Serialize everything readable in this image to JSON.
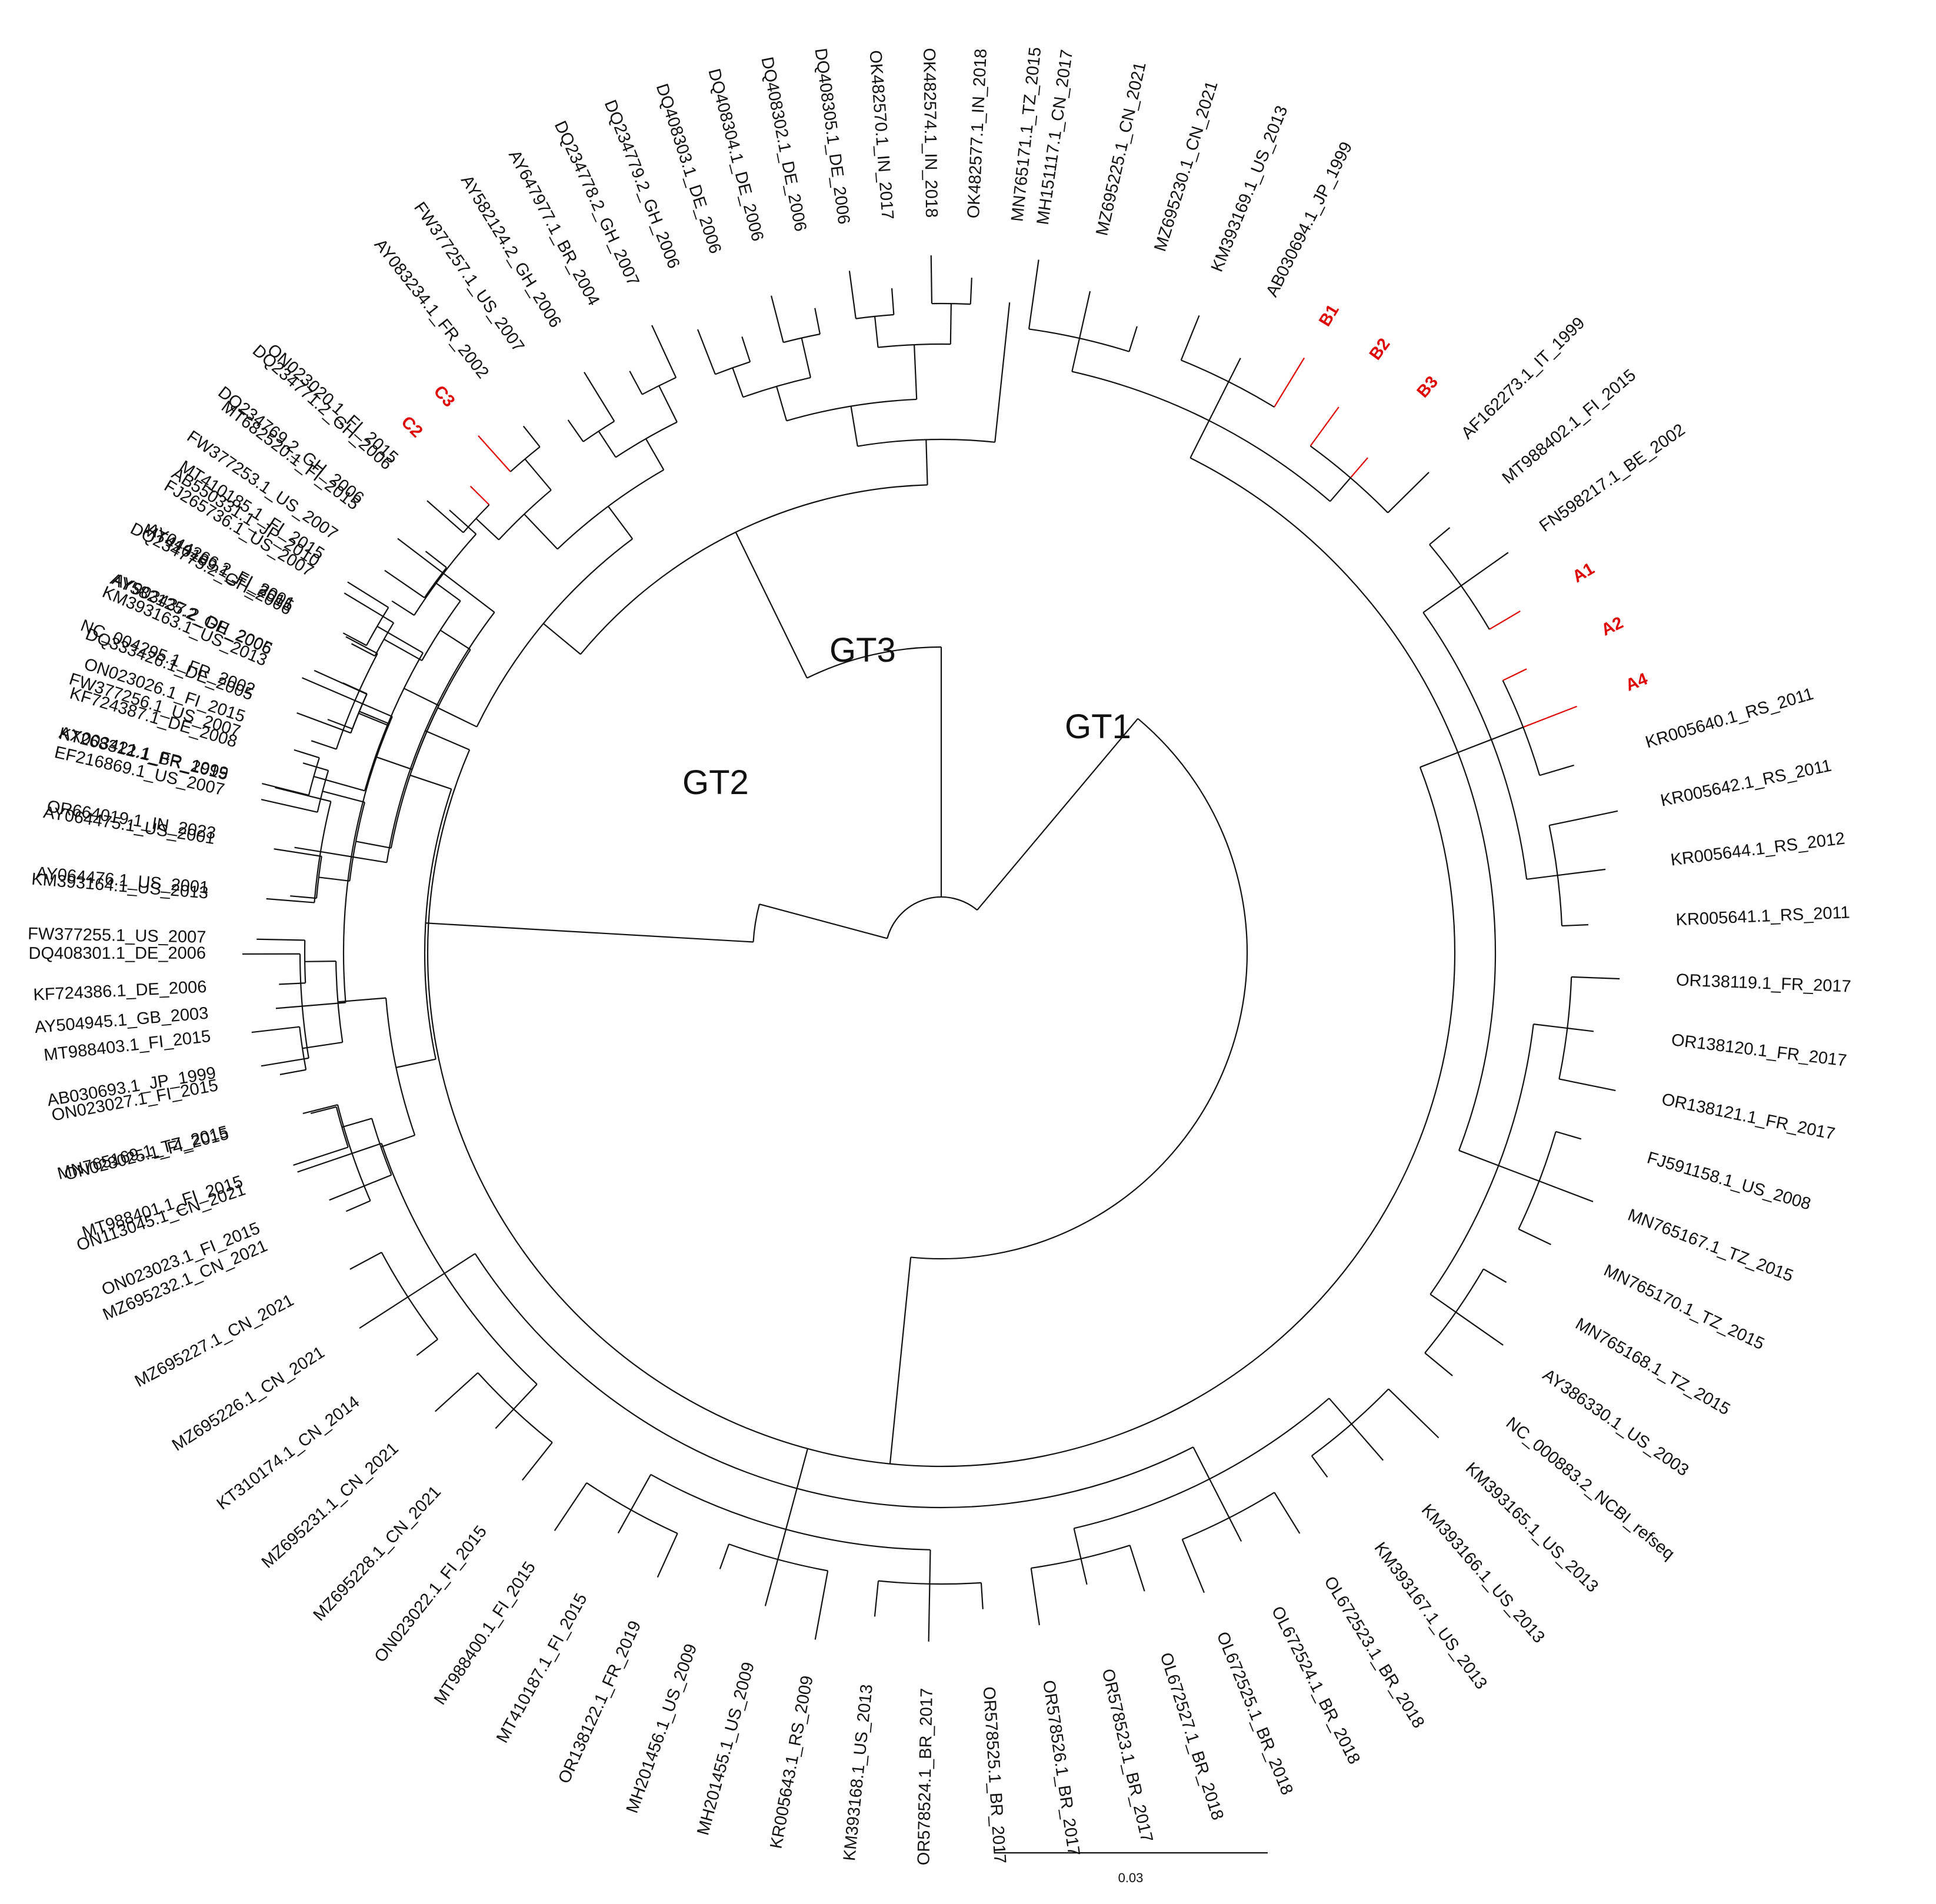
{
  "colors": {
    "branch": "#111111",
    "highlight": "#e00000",
    "background": "#ffffff"
  },
  "clades": [
    {
      "id": "GT1",
      "label": "GT1"
    },
    {
      "id": "GT2",
      "label": "GT2"
    },
    {
      "id": "GT3",
      "label": "GT3"
    }
  ],
  "scale_bar": {
    "value": 0.03,
    "label": "0.03"
  },
  "groups": [
    {
      "clade": "GT1",
      "leaves": [
        "MH151117.1_CN_2017",
        "MZ695225.1_CN_2021",
        "MZ695230.1_CN_2021",
        "KM393169.1_US_2013",
        "AB030694.1_JP_1999",
        "B1",
        "B2",
        "B3",
        "AF162273.1_IT_1999",
        "MT988402.1_FI_2015",
        "FN598217.1_BE_2002",
        "A1",
        "A2",
        "A4",
        "KR005640.1_RS_2011",
        "KR005642.1_RS_2011",
        "KR005644.1_RS_2012",
        "KR005641.1_RS_2011",
        "OR138119.1_FR_2017",
        "OR138120.1_FR_2017",
        "OR138121.1_FR_2017",
        "FJ591158.1_US_2008",
        "MN765167.1_TZ_2015",
        "MN765170.1_TZ_2015",
        "MN765168.1_TZ_2015",
        "AY386330.1_US_2003",
        "NC_000883.2_NCBI_refseq",
        "KM393165.1_US_2013",
        "KM393166.1_US_2013",
        "KM393167.1_US_2013",
        "OL672523.1_BR_2018",
        "OL672524.1_BR_2018",
        "OL672525.1_BR_2018",
        "OL672527.1_BR_2018",
        "OR578523.1_BR_2017",
        "OR578526.1_BR_2017",
        "OR578525.1_BR_2017",
        "OR578524.1_BR_2017",
        "KM393168.1_US_2013",
        "KR005643.1_RS_2009",
        "MH201455.1_US_2009",
        "MH201456.1_US_2009",
        "OR138122.1_FR_2019",
        "MT410187.1_FI_2015",
        "MT988400.1_FI_2015",
        "ON023022.1_FI_2015",
        "MZ695228.1_CN_2021",
        "MZ695231.1_CN_2021",
        "KT310174.1_CN_2014",
        "MZ695226.1_CN_2021",
        "MZ695227.1_CN_2021",
        "MZ695232.1_CN_2021",
        "ON113045.1_CN_2021",
        "MN765169.1_TZ_2015",
        "AB030693.1_JP_1999",
        "AY504945.1_GB_2003",
        "DQ408301.1_DE_2006",
        "KM393164.1_US_2013",
        "OR664019.1_IN_2023",
        "KT268312.1_BR_2015",
        "ON023026.1_FI_2015",
        "KM393163.1_US_2013",
        "MT410189.1_FI_2015",
        "MT410185.1_FI_2015",
        "MT682520.1_FI_2015",
        "ON023020.1_FI_2015"
      ]
    },
    {
      "clade": "GT2",
      "leaves": [
        "AB550331.1_JP_2010",
        "AY044266.2_FI_2001",
        "AY903437.2_DE_2005",
        "DQ333426.1_DE_2005",
        "KF724387.1_DE_2008",
        "EF216869.1_US_2007",
        "AY064475.1_US_2001",
        "AY064476.1_US_2001",
        "FW377255.1_US_2007",
        "KF724386.1_DE_2006",
        "MT988403.1_FI_2015",
        "ON023027.1_FI_2015",
        "ON023025.1_FI_2015",
        "MT988401.1_FI_2015",
        "ON023023.1_FI_2015"
      ]
    },
    {
      "clade": "GT3",
      "leaves": [
        "AX003421.1_FR_1999",
        "FW377256.1_US_2007",
        "NC_004295.1_FR_2002",
        "AY582125.2_GH_2006",
        "DQ234775.2_GH_2006",
        "FJ265736.1_US_2007",
        "FW377253.1_US_2007",
        "DQ234769.2_GH_2006",
        "DQ234771.2_GH_2006",
        "C2",
        "C3",
        "AY083234.1_FR_2002",
        "FW377257.1_US_2007",
        "AY582124.2_GH_2006",
        "AY647977.1_BR_2004",
        "DQ234778.2_GH_2007",
        "DQ234779.2_GH_2006",
        "DQ408303.1_DE_2006",
        "DQ408304.1_DE_2006",
        "DQ408302.1_DE_2006",
        "DQ408305.1_DE_2006",
        "OK482570.1_IN_2017",
        "OK482574.1_IN_2018",
        "OK482577.1_IN_2018",
        "MN765171.1_TZ_2015"
      ]
    }
  ],
  "highlighted": [
    "A1",
    "A2",
    "A4",
    "B1",
    "B2",
    "B3",
    "C2",
    "C3"
  ]
}
